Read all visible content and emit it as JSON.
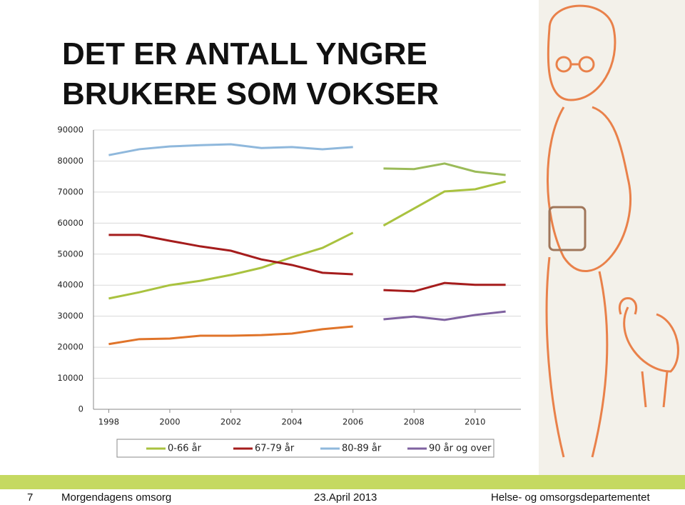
{
  "chart_data": {
    "type": "line",
    "title": "DET ER ANTALL YNGRE BRUKERE SOM VOKSER",
    "x": [
      1998,
      1999,
      2000,
      2001,
      2002,
      2003,
      2004,
      2005,
      2006,
      2007,
      2008,
      2009,
      2010,
      2011
    ],
    "segments": [
      [
        1998,
        2006
      ],
      [
        2007,
        2011
      ]
    ],
    "xlim": [
      1997.5,
      2011.5
    ],
    "xticks": [
      1998,
      2000,
      2002,
      2004,
      2006,
      2008,
      2010
    ],
    "ylim": [
      0,
      90000
    ],
    "yticks": [
      0,
      10000,
      20000,
      30000,
      40000,
      50000,
      60000,
      70000,
      80000,
      90000
    ],
    "grid": true,
    "legend": "bottom",
    "series": [
      {
        "name": "0-66 år",
        "color": "#a9c23f",
        "segment_colors": [
          "#a9c23f",
          "#a9c23f"
        ],
        "values": [
          35700,
          37700,
          40000,
          41400,
          43300,
          45600,
          49000,
          52000,
          56900,
          59200,
          64700,
          70200,
          70900,
          73400
        ]
      },
      {
        "name": "67-79 år",
        "color": "#a51c1c",
        "segment_colors": [
          "#a51c1c",
          "#a51c1c"
        ],
        "values": [
          56200,
          56200,
          54300,
          52500,
          51100,
          48300,
          46500,
          44000,
          43500,
          38400,
          38000,
          40700,
          40100,
          40100
        ]
      },
      {
        "name": "80-89 år",
        "color": "#8fb8dc",
        "segment_colors": [
          "#8fb8dc",
          "#9bbb59"
        ],
        "values": [
          81900,
          83800,
          84700,
          85100,
          85400,
          84200,
          84500,
          83800,
          84500,
          77600,
          77400,
          79200,
          76600,
          75500
        ]
      },
      {
        "name": "90 år og over",
        "color": "#7f62a0",
        "segment_colors": [
          "#e0742a",
          "#7f62a0"
        ],
        "values": [
          21000,
          22600,
          22800,
          23700,
          23700,
          23900,
          24400,
          25800,
          26700,
          29000,
          29900,
          28800,
          30400,
          31500
        ]
      }
    ]
  },
  "footer": {
    "page": "7",
    "left": "Morgendagens omsorg",
    "date": "23.April 2013",
    "right": "Helse- og omsorgsdepartementet"
  }
}
